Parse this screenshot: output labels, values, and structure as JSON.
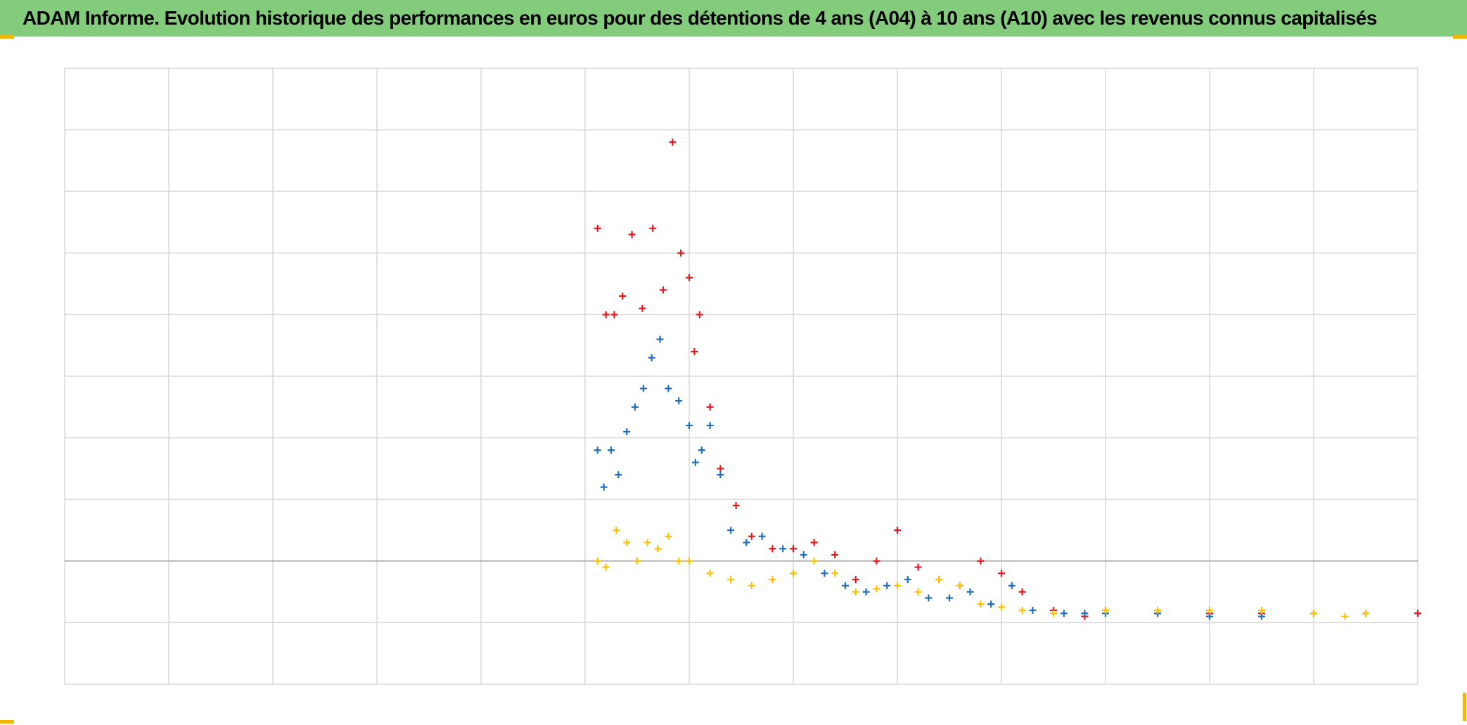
{
  "title": "ADAM Informe. Evolution historique des performances en euros pour des détentions de 4 ans (A04) à 10 ans (A10) avec les revenus connus capitalisés",
  "chart_data": {
    "type": "scatter",
    "title": "ADAM Informe. Evolution historique des performances en euros pour des détentions de 4 ans (A04) à 10 ans (A10) avec les revenus connus capitalisés",
    "xlabel": "",
    "ylabel": "",
    "x_tick_labels_shown": false,
    "y_tick_labels_shown": false,
    "grid": true,
    "legend": "none",
    "xlim": [
      0,
      13
    ],
    "ylim": [
      -2,
      8
    ],
    "baseline_y": 0,
    "colors": {
      "red": "#e8161c",
      "blue": "#1f6fbf",
      "yellow": "#ffc000"
    },
    "marker": "+",
    "series": [
      {
        "color": "#e8161c",
        "x": [
          5.12,
          5.2,
          5.28,
          5.36,
          5.45,
          5.55,
          5.65,
          5.75,
          5.84,
          5.92,
          6.0,
          6.05,
          6.1,
          6.2,
          6.3,
          6.45,
          6.6,
          6.8,
          7.0,
          7.2,
          7.4,
          7.6,
          7.8,
          8.0,
          8.2,
          8.4,
          8.6,
          8.8,
          9.0,
          9.2,
          9.5,
          9.8,
          10.0,
          10.5,
          11.0,
          11.5,
          12.0,
          12.5,
          13.0
        ],
        "y": [
          5.4,
          4.0,
          4.0,
          4.3,
          5.3,
          4.1,
          5.4,
          4.4,
          6.8,
          5.0,
          4.6,
          3.4,
          4.0,
          2.5,
          1.5,
          0.9,
          0.4,
          0.2,
          0.2,
          0.3,
          0.1,
          -0.3,
          0.0,
          0.5,
          -0.1,
          -0.3,
          -0.4,
          0.0,
          -0.2,
          -0.5,
          -0.8,
          -0.9,
          -0.8,
          -0.85,
          -0.85,
          -0.85,
          -0.85,
          -0.85,
          -0.85
        ]
      },
      {
        "color": "#1f6fbf",
        "x": [
          5.12,
          5.18,
          5.25,
          5.32,
          5.4,
          5.48,
          5.56,
          5.64,
          5.72,
          5.8,
          5.9,
          6.0,
          6.06,
          6.12,
          6.2,
          6.3,
          6.4,
          6.55,
          6.7,
          6.9,
          7.1,
          7.3,
          7.5,
          7.7,
          7.9,
          8.1,
          8.3,
          8.5,
          8.7,
          8.9,
          9.1,
          9.3,
          9.6,
          9.8,
          10.0,
          10.5,
          11.0,
          11.5
        ],
        "y": [
          1.8,
          1.2,
          1.8,
          1.4,
          2.1,
          2.5,
          2.8,
          3.3,
          3.6,
          2.8,
          2.6,
          2.2,
          1.6,
          1.8,
          2.2,
          1.4,
          0.5,
          0.3,
          0.4,
          0.2,
          0.1,
          -0.2,
          -0.4,
          -0.5,
          -0.4,
          -0.3,
          -0.6,
          -0.6,
          -0.5,
          -0.7,
          -0.4,
          -0.8,
          -0.85,
          -0.85,
          -0.85,
          -0.85,
          -0.9,
          -0.9
        ]
      },
      {
        "color": "#ffc000",
        "x": [
          5.12,
          5.2,
          5.3,
          5.4,
          5.5,
          5.6,
          5.7,
          5.8,
          5.9,
          6.0,
          6.2,
          6.4,
          6.6,
          6.8,
          7.0,
          7.2,
          7.4,
          7.6,
          7.8,
          8.0,
          8.2,
          8.4,
          8.6,
          8.8,
          9.0,
          9.2,
          9.5,
          10.0,
          10.5,
          11.0,
          11.5,
          12.0,
          12.3,
          12.5
        ],
        "y": [
          0.0,
          -0.1,
          0.5,
          0.3,
          0.0,
          0.3,
          0.2,
          0.4,
          0.0,
          0.0,
          -0.2,
          -0.3,
          -0.4,
          -0.3,
          -0.2,
          0.0,
          -0.2,
          -0.5,
          -0.45,
          -0.4,
          -0.5,
          -0.3,
          -0.4,
          -0.7,
          -0.75,
          -0.8,
          -0.85,
          -0.8,
          -0.8,
          -0.8,
          -0.8,
          -0.85,
          -0.9,
          -0.85
        ]
      }
    ]
  }
}
